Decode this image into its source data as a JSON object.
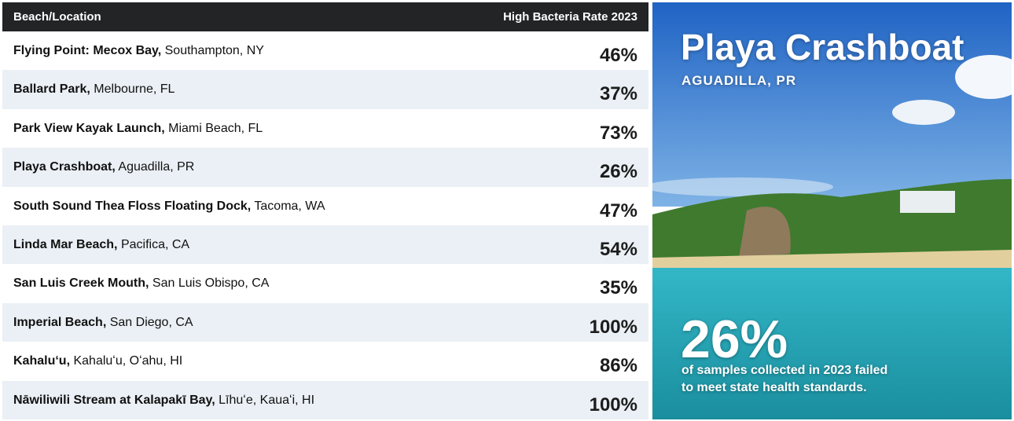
{
  "table": {
    "columns": [
      "Beach/Location",
      "High Bacteria Rate 2023"
    ],
    "rows": [
      [
        "Flying Point: Mecox Bay,",
        "Southampton, NY",
        "46%"
      ],
      [
        "Ballard Park,",
        "Melbourne, FL",
        "37%"
      ],
      [
        "Park View Kayak Launch,",
        "Miami Beach, FL",
        "73%"
      ],
      [
        "Playa Crashboat,",
        "Aguadilla, PR",
        "26%"
      ],
      [
        "South Sound Thea Floss Floating Dock,",
        "Tacoma, WA",
        "47%"
      ],
      [
        "Linda Mar Beach,",
        "Pacifica, CA",
        "54%"
      ],
      [
        "San Luis Creek Mouth,",
        "San Luis Obispo, CA",
        "35%"
      ],
      [
        "Imperial Beach,",
        "San Diego, CA",
        "100%"
      ],
      [
        "Kahaluʻu,",
        "Kahaluʻu, Oʻahu, HI",
        "86%"
      ],
      [
        "Nāwiliwili Stream at Kalapakī Bay,",
        "Līhuʻe, Kauaʻi, HI",
        "100%"
      ]
    ]
  },
  "panel": {
    "title": "Playa Crashboat",
    "subtitle": "AGUADILLA, PR",
    "stat": "26%",
    "caption": [
      "of samples collected in 2023 failed",
      "to meet state health standards."
    ]
  }
}
